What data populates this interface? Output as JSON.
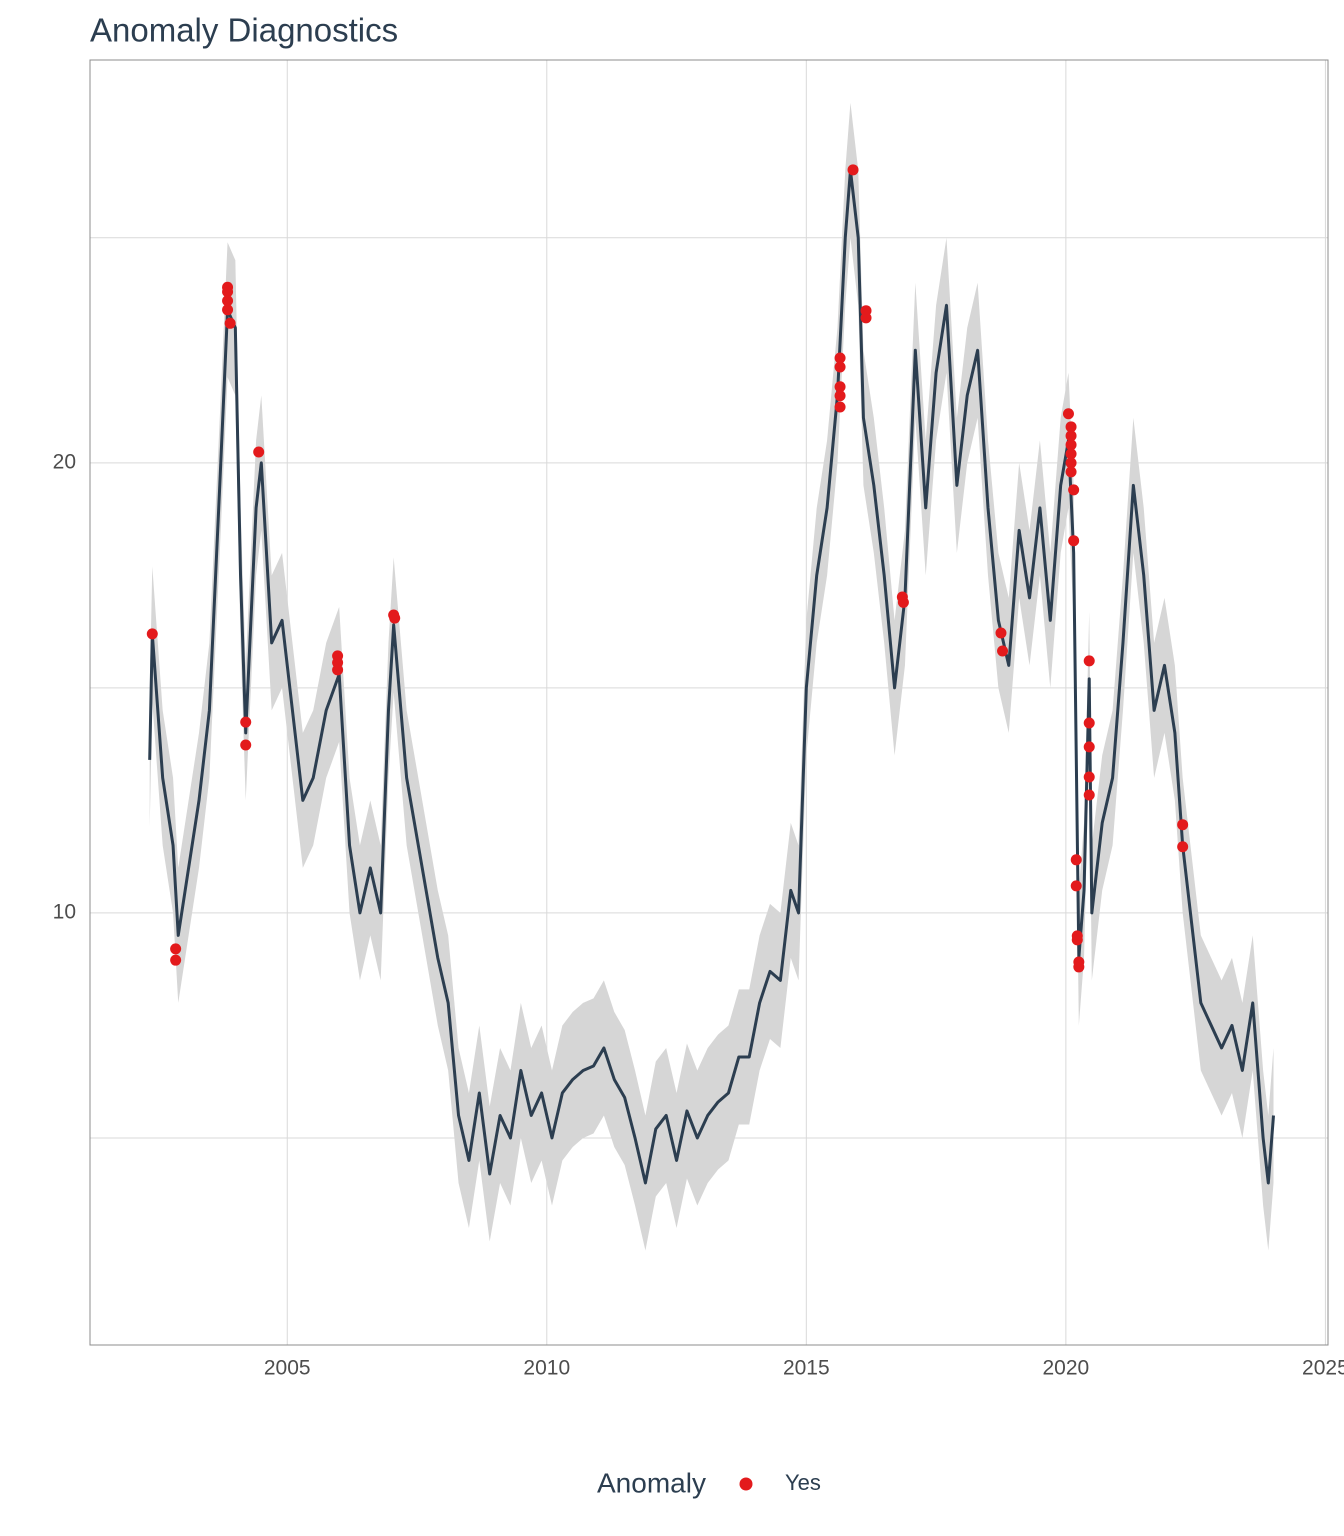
{
  "chart_data": {
    "type": "anomaly",
    "title": "Anomaly Diagnostics",
    "legend_title": "Anomaly",
    "legend_position": "bottom",
    "grid": true,
    "line_color": "#2c3e50",
    "band_color": "#d6d6d6",
    "xlim": [
      2001.2,
      2025.05
    ],
    "ylim": [
      0.4,
      28.95
    ],
    "xticks": [
      2005,
      2010,
      2015,
      2020,
      2025
    ],
    "yticks": [
      10,
      20
    ],
    "yminor": [
      5,
      15,
      25
    ],
    "x": [
      2002.35,
      2002.4,
      2002.6,
      2002.8,
      2002.9,
      2003.1,
      2003.3,
      2003.5,
      2003.7,
      2003.85,
      2004.0,
      2004.1,
      2004.2,
      2004.4,
      2004.5,
      2004.7,
      2004.9,
      2005.1,
      2005.3,
      2005.5,
      2005.75,
      2006.0,
      2006.2,
      2006.4,
      2006.6,
      2006.8,
      2006.95,
      2007.05,
      2007.3,
      2007.6,
      2007.9,
      2008.1,
      2008.3,
      2008.5,
      2008.7,
      2008.9,
      2009.1,
      2009.3,
      2009.5,
      2009.7,
      2009.9,
      2010.1,
      2010.3,
      2010.5,
      2010.7,
      2010.9,
      2011.1,
      2011.3,
      2011.5,
      2011.7,
      2011.9,
      2012.1,
      2012.3,
      2012.5,
      2012.7,
      2012.9,
      2013.1,
      2013.3,
      2013.5,
      2013.7,
      2013.9,
      2014.1,
      2014.3,
      2014.5,
      2014.7,
      2014.85,
      2015.0,
      2015.2,
      2015.4,
      2015.6,
      2015.75,
      2015.85,
      2016.0,
      2016.1,
      2016.3,
      2016.5,
      2016.7,
      2016.9,
      2017.1,
      2017.3,
      2017.5,
      2017.7,
      2017.9,
      2018.1,
      2018.3,
      2018.5,
      2018.7,
      2018.9,
      2019.1,
      2019.3,
      2019.5,
      2019.7,
      2019.9,
      2020.05,
      2020.15,
      2020.25,
      2020.35,
      2020.45,
      2020.5,
      2020.7,
      2020.9,
      2021.1,
      2021.3,
      2021.5,
      2021.7,
      2021.9,
      2022.1,
      2022.25,
      2022.4,
      2022.6,
      2022.8,
      2023.0,
      2023.2,
      2023.4,
      2023.6,
      2023.8,
      2023.9,
      2024.0
    ],
    "values": [
      13.4,
      16.2,
      13.0,
      11.5,
      9.5,
      11.0,
      12.5,
      14.5,
      19.5,
      23.4,
      23.0,
      17.5,
      14.0,
      19.0,
      20.0,
      16.0,
      16.5,
      14.5,
      12.5,
      13.0,
      14.5,
      15.3,
      11.5,
      10.0,
      11.0,
      10.0,
      14.5,
      16.4,
      13.0,
      11.0,
      9.0,
      8.0,
      5.5,
      4.5,
      6.0,
      4.2,
      5.5,
      5.0,
      6.5,
      5.5,
      6.0,
      5.0,
      6.0,
      6.3,
      6.5,
      6.6,
      7.0,
      6.3,
      5.9,
      5.0,
      4.0,
      5.2,
      5.5,
      4.5,
      5.6,
      5.0,
      5.5,
      5.8,
      6.0,
      6.8,
      6.8,
      8.0,
      8.7,
      8.5,
      10.5,
      10.0,
      15.0,
      17.5,
      19.0,
      21.5,
      25.0,
      26.5,
      25.0,
      21.0,
      19.5,
      17.5,
      15.0,
      17.0,
      22.5,
      19.0,
      22.0,
      23.5,
      19.5,
      21.5,
      22.5,
      19.0,
      16.5,
      15.5,
      18.5,
      17.0,
      19.0,
      16.5,
      19.5,
      20.5,
      18.0,
      9.0,
      10.5,
      15.2,
      10.0,
      12.0,
      13.0,
      16.0,
      19.5,
      17.5,
      14.5,
      15.5,
      14.0,
      11.5,
      10.0,
      8.0,
      7.5,
      7.0,
      7.5,
      6.5,
      8.0,
      5.0,
      4.0,
      5.5
    ],
    "upper": [
      14.9,
      17.7,
      14.5,
      13.0,
      11.0,
      12.5,
      14.0,
      16.0,
      21.0,
      24.9,
      24.5,
      19.0,
      15.5,
      20.5,
      21.5,
      17.5,
      18.0,
      16.0,
      14.0,
      14.5,
      16.0,
      16.8,
      13.0,
      11.5,
      12.5,
      11.5,
      16.0,
      17.9,
      14.5,
      12.5,
      10.5,
      9.5,
      7.0,
      6.0,
      7.5,
      5.7,
      7.0,
      6.5,
      8.0,
      7.0,
      7.5,
      6.5,
      7.5,
      7.8,
      8.0,
      8.1,
      8.5,
      7.8,
      7.4,
      6.5,
      5.5,
      6.7,
      7.0,
      6.0,
      7.1,
      6.5,
      7.0,
      7.3,
      7.5,
      8.3,
      8.3,
      9.5,
      10.2,
      10.0,
      12.0,
      11.5,
      16.5,
      19.0,
      20.5,
      23.0,
      26.5,
      28.0,
      26.5,
      22.5,
      21.0,
      19.0,
      16.5,
      18.5,
      24.0,
      20.5,
      23.5,
      25.0,
      21.0,
      23.0,
      24.0,
      20.5,
      18.0,
      17.0,
      20.0,
      18.5,
      20.5,
      18.0,
      21.0,
      22.0,
      19.5,
      10.5,
      12.0,
      16.7,
      11.5,
      13.5,
      14.5,
      17.5,
      21.0,
      19.0,
      16.0,
      17.0,
      15.5,
      13.0,
      11.5,
      9.5,
      9.0,
      8.5,
      9.0,
      8.0,
      9.5,
      6.5,
      5.5,
      7.0
    ],
    "lower": [
      11.9,
      14.7,
      11.5,
      10.0,
      8.0,
      9.5,
      11.0,
      13.0,
      18.0,
      21.9,
      21.5,
      16.0,
      12.5,
      17.5,
      18.5,
      14.5,
      15.0,
      13.0,
      11.0,
      11.5,
      13.0,
      13.8,
      10.0,
      8.5,
      9.5,
      8.5,
      13.0,
      14.9,
      11.5,
      9.5,
      7.5,
      6.5,
      4.0,
      3.0,
      4.5,
      2.7,
      4.0,
      3.5,
      5.0,
      4.0,
      4.5,
      3.5,
      4.5,
      4.8,
      5.0,
      5.1,
      5.5,
      4.8,
      4.4,
      3.5,
      2.5,
      3.7,
      4.0,
      3.0,
      4.1,
      3.5,
      4.0,
      4.3,
      4.5,
      5.3,
      5.3,
      6.5,
      7.2,
      7.0,
      9.0,
      8.5,
      13.5,
      16.0,
      17.5,
      20.0,
      23.5,
      25.0,
      23.5,
      19.5,
      18.0,
      16.0,
      13.5,
      15.5,
      21.0,
      17.5,
      20.5,
      22.0,
      18.0,
      20.0,
      21.0,
      17.5,
      15.0,
      14.0,
      17.0,
      15.5,
      17.5,
      15.0,
      18.0,
      19.0,
      16.5,
      7.5,
      9.0,
      13.7,
      8.5,
      10.5,
      11.5,
      14.5,
      18.0,
      16.0,
      13.0,
      14.0,
      12.5,
      10.0,
      8.5,
      6.5,
      6.0,
      5.5,
      6.0,
      5.0,
      6.5,
      3.5,
      2.5,
      4.0
    ],
    "anomalies": {
      "name": "Yes",
      "color": "#e31a1c",
      "x": [
        2002.4,
        2002.85,
        2002.85,
        2003.85,
        2003.85,
        2003.85,
        2003.85,
        2003.9,
        2004.2,
        2004.2,
        2004.45,
        2005.97,
        2005.97,
        2005.97,
        2007.05,
        2007.07,
        2015.65,
        2015.65,
        2015.65,
        2015.65,
        2015.65,
        2015.9,
        2016.15,
        2016.15,
        2016.85,
        2016.87,
        2018.75,
        2018.78,
        2020.05,
        2020.1,
        2020.1,
        2020.1,
        2020.1,
        2020.1,
        2020.1,
        2020.15,
        2020.15,
        2020.2,
        2020.2,
        2020.22,
        2020.22,
        2020.25,
        2020.25,
        2020.45,
        2020.45,
        2020.45,
        2020.45,
        2020.45,
        2022.25,
        2022.25
      ],
      "y": [
        16.2,
        9.2,
        8.95,
        23.9,
        23.8,
        23.6,
        23.4,
        23.1,
        14.24,
        13.73,
        20.24,
        15.71,
        15.56,
        15.4,
        16.62,
        16.55,
        22.33,
        22.13,
        21.69,
        21.49,
        21.24,
        26.51,
        23.38,
        23.22,
        17.02,
        16.9,
        16.22,
        15.82,
        21.09,
        20.8,
        20.6,
        20.4,
        20.2,
        20.0,
        19.8,
        19.4,
        18.27,
        11.18,
        10.6,
        9.49,
        9.4,
        8.91,
        8.8,
        15.6,
        14.22,
        13.69,
        13.02,
        12.62,
        11.96,
        11.47
      ]
    }
  }
}
